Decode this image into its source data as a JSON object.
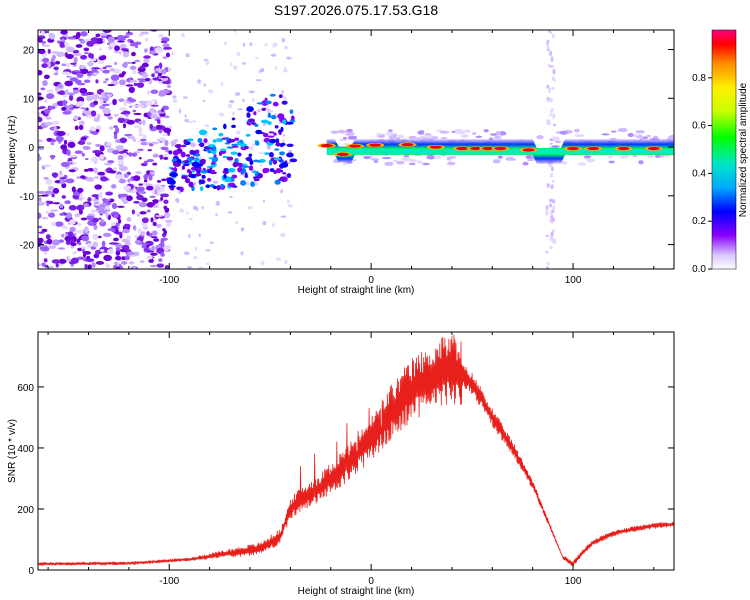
{
  "title": "S197.2026.075.17.53.G18",
  "colors": {
    "snr_line": "#e8201c",
    "frame": "#000000",
    "spectro_low": "#ffffff",
    "spectro_purple": "#7a00e0"
  },
  "chart_data": [
    {
      "id": "spectrogram",
      "type": "heatmap",
      "title": "S197.2026.075.17.53.G18",
      "xlabel": "Height of straight line (km)",
      "ylabel": "Frequency (Hz)",
      "xlim": [
        -165,
        150
      ],
      "ylim": [
        -25,
        24
      ],
      "x_ticks": [
        -100,
        0,
        100
      ],
      "x_tick_labels": [
        "-100",
        "0",
        "100"
      ],
      "y_ticks": [
        20,
        10,
        0,
        -10,
        -20
      ],
      "y_tick_labels": [
        "20",
        "10",
        "0",
        "-10",
        "-20"
      ],
      "colorbar": {
        "label": "Normalized spectral amplitude",
        "range": [
          0.0,
          1.0
        ],
        "ticks": [
          0.0,
          0.2,
          0.4,
          0.6,
          0.8
        ],
        "tick_labels": [
          "0.0",
          "0.2",
          "0.4",
          "0.6",
          "0.8"
        ],
        "colormap": [
          "#ffffff",
          "#d8c4ff",
          "#8a00ff",
          "#0000ff",
          "#00a8ff",
          "#00e6c8",
          "#00ff00",
          "#c8ff00",
          "#ffee00",
          "#ff8c00",
          "#ff0000",
          "#ff0080"
        ]
      },
      "regions": [
        {
          "name": "noise",
          "x_range": [
            -165,
            -100
          ],
          "y_range": [
            -25,
            24
          ],
          "level": 0.2
        },
        {
          "name": "transition",
          "x_range": [
            -100,
            -35
          ],
          "y_range": [
            -10,
            16
          ],
          "level": 0.3
        },
        {
          "name": "carrier",
          "x_range": [
            -20,
            150
          ],
          "y_center": 0,
          "level": 0.9
        },
        {
          "name": "vertical_streak",
          "x_range": [
            86,
            92
          ],
          "y_range": [
            -25,
            24
          ],
          "level": 0.1
        }
      ]
    },
    {
      "id": "snr",
      "type": "line",
      "xlabel": "Height of straight line (km)",
      "ylabel": "SNR (10 * v/v)",
      "xlim": [
        -165,
        150
      ],
      "ylim": [
        0,
        780
      ],
      "x_ticks": [
        -100,
        0,
        100
      ],
      "x_tick_labels": [
        "-100",
        "0",
        "100"
      ],
      "y_ticks": [
        0,
        200,
        400,
        600
      ],
      "y_tick_labels": [
        "0",
        "200",
        "400",
        "600"
      ],
      "series": [
        {
          "name": "SNR",
          "envelope_x": [
            -165,
            -120,
            -90,
            -70,
            -55,
            -45,
            -40,
            -35,
            -30,
            -25,
            -20,
            -15,
            -10,
            -5,
            0,
            10,
            20,
            30,
            35,
            40,
            45,
            50,
            55,
            60,
            70,
            80,
            90,
            95,
            100,
            105,
            110,
            120,
            130,
            140,
            150
          ],
          "envelope_y": [
            20,
            22,
            35,
            55,
            70,
            110,
            200,
            230,
            250,
            270,
            300,
            330,
            360,
            400,
            430,
            520,
            590,
            630,
            650,
            660,
            640,
            610,
            560,
            500,
            400,
            280,
            120,
            40,
            20,
            60,
            90,
            120,
            135,
            145,
            150
          ],
          "spike_x": [
            -35,
            -28,
            -22,
            -17,
            -12,
            -7,
            -1,
            5,
            12,
            20,
            28,
            35,
            41
          ],
          "spike_y": [
            340,
            380,
            330,
            420,
            480,
            390,
            530,
            470,
            560,
            620,
            700,
            760,
            770
          ]
        }
      ]
    }
  ]
}
